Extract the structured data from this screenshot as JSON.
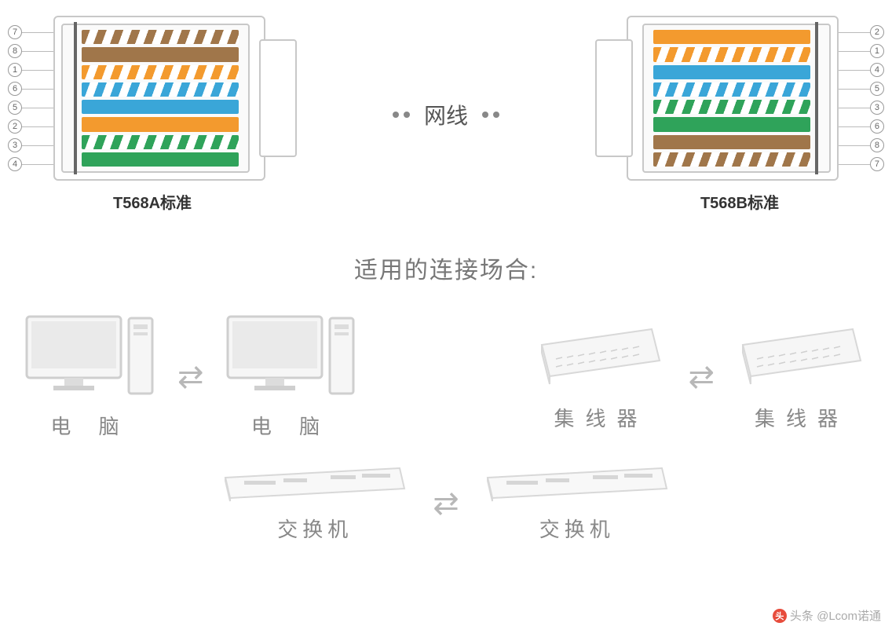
{
  "colors": {
    "outline": "#c8c8c8",
    "text_dark": "#333333",
    "text_mid": "#777777",
    "text_light": "#999999",
    "device_stroke": "#d5d5d5",
    "device_fill": "#f4f4f4",
    "arrow": "#b8b8b8"
  },
  "top": {
    "center_label": "网线",
    "left": {
      "label": "T568A标准",
      "pin_order": [
        "7",
        "8",
        "1",
        "6",
        "5",
        "2",
        "3",
        "4"
      ],
      "wires": [
        {
          "style": "striped",
          "color": "#a0764a"
        },
        {
          "style": "solid",
          "color": "#a0764a"
        },
        {
          "style": "striped",
          "color": "#f39a2e"
        },
        {
          "style": "striped",
          "color": "#3aa6d8"
        },
        {
          "style": "solid",
          "color": "#3aa6d8"
        },
        {
          "style": "solid",
          "color": "#f39a2e"
        },
        {
          "style": "striped",
          "color": "#2fa35a"
        },
        {
          "style": "solid",
          "color": "#2fa35a"
        }
      ]
    },
    "right": {
      "label": "T568B标准",
      "pin_order": [
        "2",
        "1",
        "4",
        "5",
        "3",
        "6",
        "8",
        "7"
      ],
      "wires": [
        {
          "style": "solid",
          "color": "#f39a2e"
        },
        {
          "style": "striped",
          "color": "#f39a2e"
        },
        {
          "style": "solid",
          "color": "#3aa6d8"
        },
        {
          "style": "striped",
          "color": "#3aa6d8"
        },
        {
          "style": "striped",
          "color": "#2fa35a"
        },
        {
          "style": "solid",
          "color": "#2fa35a"
        },
        {
          "style": "solid",
          "color": "#a0764a"
        },
        {
          "style": "striped",
          "color": "#a0764a"
        }
      ]
    }
  },
  "section_title": "适用的连接场合:",
  "scenarios": {
    "row1": {
      "left": {
        "a": "电  脑",
        "b": "电  脑",
        "icon": "pc"
      },
      "right": {
        "a": "集线器",
        "b": "集线器",
        "icon": "hub"
      }
    },
    "row2": {
      "a": "交换机",
      "b": "交换机",
      "icon": "switch"
    }
  },
  "watermark": "头条 @Lcom诺通"
}
